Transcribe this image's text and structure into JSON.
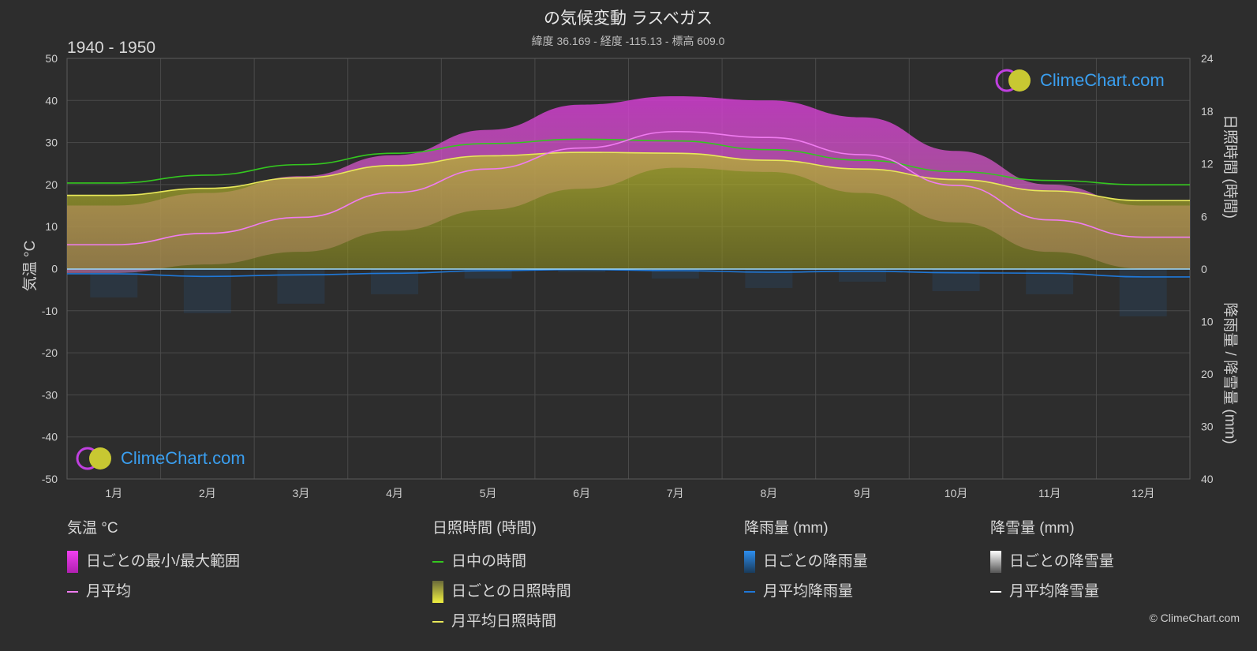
{
  "header": {
    "title": "の気候変動 ラスベガス",
    "subtitle": "緯度 36.169 - 経度 -115.13 - 標高 609.0",
    "period": "1940 - 1950"
  },
  "watermark": "ClimeChart.com",
  "copyright": "© ClimeChart.com",
  "colors": {
    "background": "#2d2d2d",
    "grid": "#4a4a4a",
    "daylight": "#34c71f",
    "sunshine": "#e8e85a",
    "temp_avg": "#f07cf0",
    "temp_range": "#d23cd2",
    "rain": "#1f78d8",
    "snow": "#ffffff",
    "brand": "#3a9ff0"
  },
  "legend": {
    "temperature": {
      "heading": "気温 °C",
      "range": "日ごとの最小/最大範囲",
      "avg": "月平均"
    },
    "sunshine": {
      "heading": "日照時間 (時間)",
      "daylight": "日中の時間",
      "daily": "日ごとの日照時間",
      "avg": "月平均日照時間"
    },
    "rain": {
      "heading": "降雨量 (mm)",
      "daily": "日ごとの降雨量",
      "avg": "月平均降雨量"
    },
    "snow": {
      "heading": "降雪量 (mm)",
      "daily": "日ごとの降雪量",
      "avg": "月平均降雪量"
    }
  },
  "chart_data": {
    "type": "line",
    "categories": [
      "1月",
      "2月",
      "3月",
      "4月",
      "5月",
      "6月",
      "7月",
      "8月",
      "9月",
      "10月",
      "11月",
      "12月"
    ],
    "y_left": {
      "label": "気温 °C",
      "range": [
        -50,
        50
      ],
      "ticks": [
        50,
        40,
        30,
        20,
        10,
        0,
        -10,
        -20,
        -30,
        -40,
        -50
      ]
    },
    "y_right_top": {
      "label": "日照時間 (時間)",
      "range": [
        0,
        24
      ],
      "ticks": [
        24,
        18,
        12,
        6,
        0
      ]
    },
    "y_right_bottom": {
      "label": "降雨量 / 降雪量 (mm)",
      "range": [
        0,
        40
      ],
      "ticks": [
        0,
        10,
        20,
        30,
        40
      ]
    },
    "grid": true,
    "series": [
      {
        "name": "日中の時間",
        "axis": "hours",
        "values": [
          9.8,
          10.7,
          11.9,
          13.2,
          14.3,
          14.8,
          14.6,
          13.6,
          12.4,
          11.1,
          10.1,
          9.6
        ]
      },
      {
        "name": "月平均日照時間",
        "axis": "hours",
        "values": [
          8.4,
          9.2,
          10.4,
          11.8,
          12.9,
          13.3,
          13.2,
          12.4,
          11.4,
          10.2,
          8.9,
          7.8
        ]
      },
      {
        "name": "月平均",
        "axis": "temperature",
        "values": [
          5.7,
          8.4,
          12.2,
          18.1,
          23.7,
          28.7,
          32.6,
          31.2,
          27.1,
          19.8,
          11.6,
          7.5
        ]
      },
      {
        "name": "月平均降雨量",
        "axis": "precipitation",
        "values": [
          0.9,
          1.4,
          1.1,
          0.8,
          0.3,
          0.1,
          0.3,
          0.6,
          0.4,
          0.7,
          0.8,
          1.5
        ]
      }
    ],
    "temperature_daily_range": {
      "min": [
        -1,
        1,
        4,
        9,
        14,
        19,
        24,
        23,
        18,
        11,
        4,
        0
      ],
      "max": [
        15,
        18,
        22,
        27,
        33,
        39,
        41,
        40,
        36,
        28,
        20,
        15
      ]
    }
  }
}
